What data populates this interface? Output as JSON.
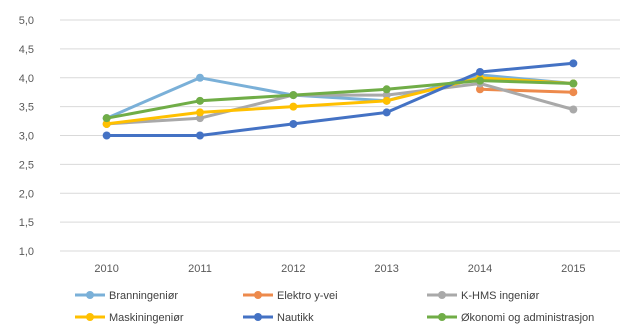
{
  "chart_data": {
    "type": "line",
    "title": "",
    "xlabel": "",
    "ylabel": "",
    "x": [
      "2010",
      "2011",
      "2012",
      "2013",
      "2014",
      "2015"
    ],
    "ylim": [
      1.0,
      5.0
    ],
    "yticks": [
      "1,0",
      "1,5",
      "2,0",
      "2,5",
      "3,0",
      "3,5",
      "4,0",
      "4,5",
      "5,0"
    ],
    "grid": true,
    "legend_position": "bottom",
    "series": [
      {
        "name": "Branningeniør",
        "color": "#7ab0d8",
        "values": [
          3.3,
          4.0,
          3.7,
          3.6,
          4.05,
          3.9
        ]
      },
      {
        "name": "Elektro y-vei",
        "color": "#ed8a4c",
        "values": [
          null,
          null,
          null,
          null,
          3.8,
          3.75
        ]
      },
      {
        "name": "K-HMS ingeniør",
        "color": "#a9a9a9",
        "values": [
          3.2,
          3.3,
          3.7,
          3.7,
          3.9,
          3.45
        ]
      },
      {
        "name": "Maskiningeniør",
        "color": "#ffc000",
        "values": [
          3.2,
          3.4,
          3.5,
          3.6,
          4.0,
          3.9
        ]
      },
      {
        "name": "Nautikk",
        "color": "#4472c4",
        "values": [
          3.0,
          3.0,
          3.2,
          3.4,
          4.1,
          4.25
        ]
      },
      {
        "name": "Økonomi og administrasjon",
        "color": "#70ad47",
        "values": [
          3.3,
          3.6,
          3.7,
          3.8,
          3.95,
          3.9
        ]
      }
    ]
  }
}
